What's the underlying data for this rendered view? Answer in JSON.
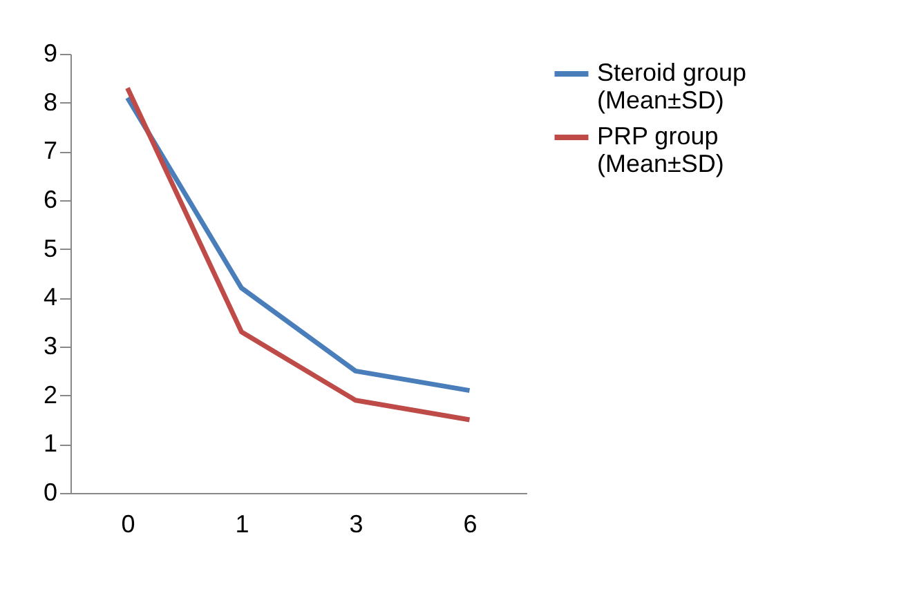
{
  "chart_data": {
    "type": "line",
    "categories": [
      "0",
      "1",
      "3",
      "6"
    ],
    "series": [
      {
        "name": "Steroid group (Mean±SD)",
        "color": "#4a7ebb",
        "values": [
          8.1,
          4.2,
          2.5,
          2.1
        ]
      },
      {
        "name": "PRP group (Mean±SD)",
        "color": "#be4b48",
        "values": [
          8.3,
          3.3,
          1.9,
          1.5
        ]
      }
    ],
    "ylim": [
      0,
      9
    ],
    "yticks": [
      0,
      1,
      2,
      3,
      4,
      5,
      6,
      7,
      8,
      9
    ],
    "grid": false,
    "legend": "right",
    "marker": "none",
    "line_style": "solid"
  }
}
